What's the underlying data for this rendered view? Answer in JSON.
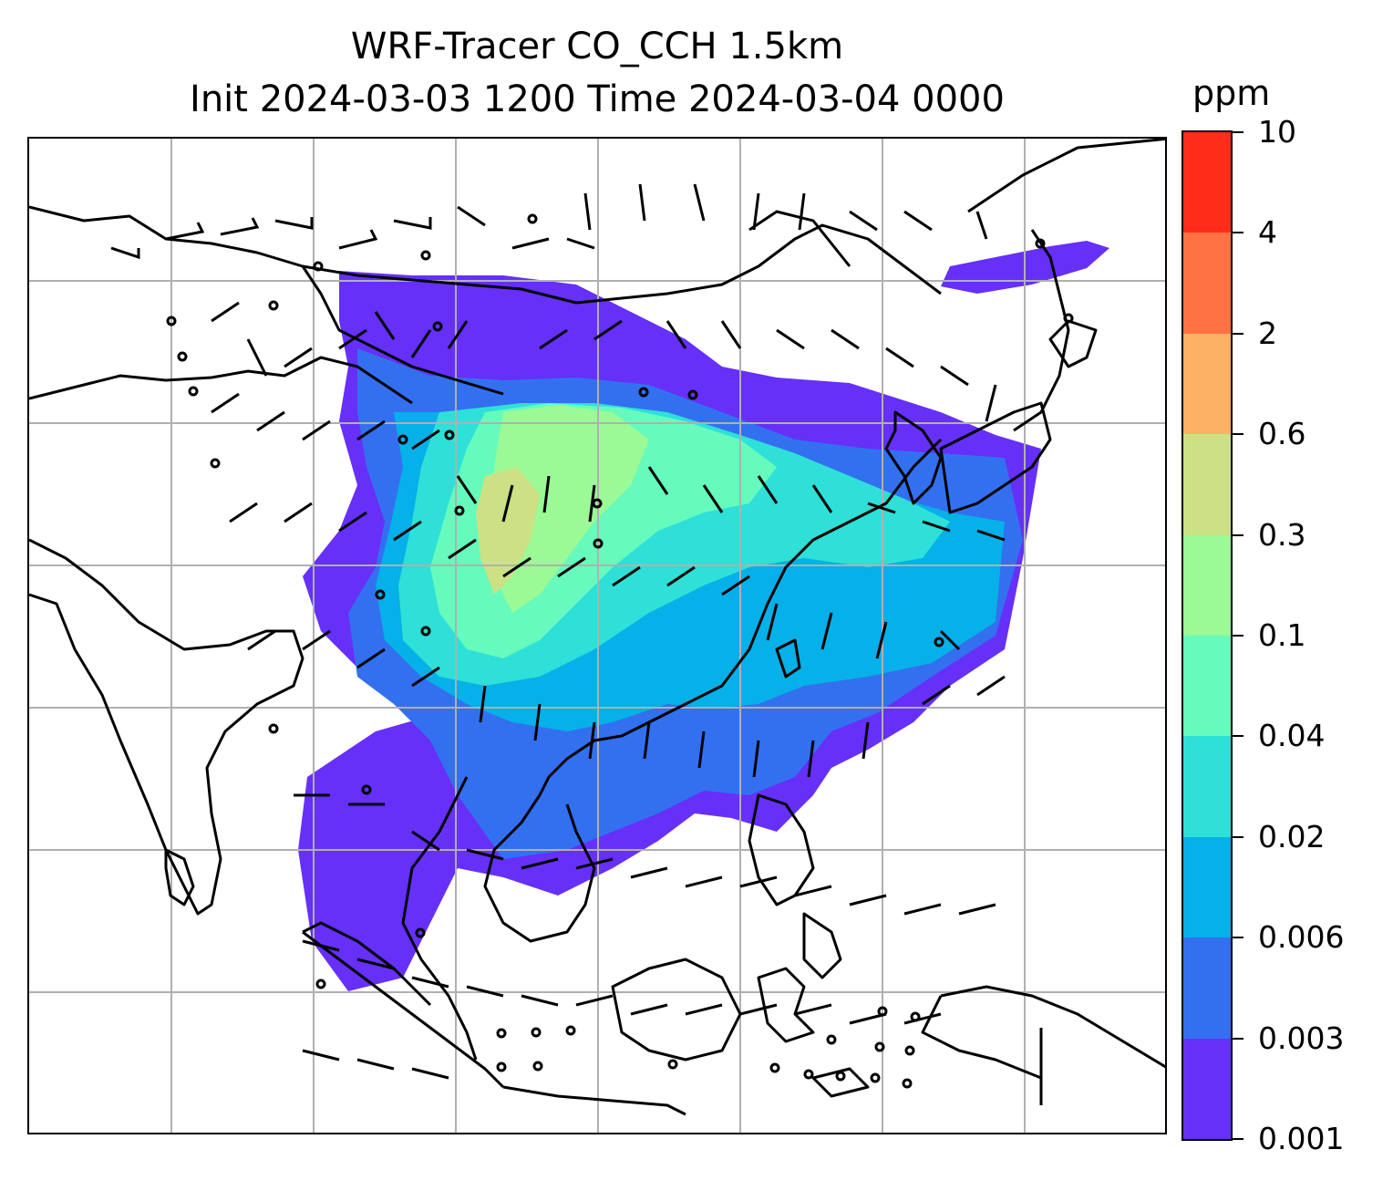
{
  "title": {
    "line1": "WRF-Tracer CO_CCH 1.5km",
    "line2": "Init 2024-03-03 1200 Time 2024-03-04 0000"
  },
  "colorbar": {
    "unit": "ppm",
    "levels": [
      "0.001",
      "0.003",
      "0.006",
      "0.02",
      "0.04",
      "0.1",
      "0.3",
      "0.6",
      "2",
      "4",
      "10"
    ],
    "colors": [
      "#6630f8",
      "#3370f0",
      "#06b0e8",
      "#2ee0d8",
      "#66fbbd",
      "#9bfa95",
      "#cbe184",
      "#fdb165",
      "#ff7342",
      "#ff2d1a"
    ]
  },
  "map": {
    "gridlines": true,
    "grid_color": "#b0b0b0",
    "coastline_color": "#000000",
    "overlays": [
      "tracer concentration filled contours",
      "wind barbs",
      "coastlines"
    ]
  }
}
